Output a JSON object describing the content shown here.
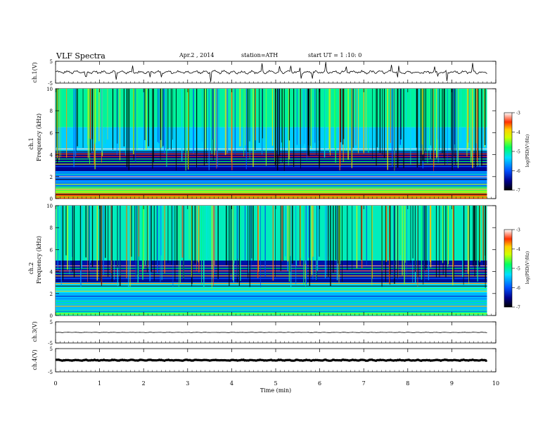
{
  "header": {
    "title": "VLF  Spectra",
    "date": "Apr.2 , 2014",
    "station": "station=ATH",
    "start": "start  UT  =  1 :10: 0"
  },
  "chart_data": [
    {
      "type": "line",
      "panel": "ch1-waveform",
      "ylabel": "ch.1(V)",
      "ylim": [
        -5,
        5
      ],
      "yticks": [
        "5",
        "-5"
      ],
      "xlim": [
        0,
        10
      ],
      "baseline_V": 0.0,
      "series": [
        {
          "x_min": [
            0,
            9.8
          ],
          "y_V_approx": 0.0
        }
      ]
    },
    {
      "type": "heatmap",
      "panel": "ch1-spectrogram",
      "ylabel": "ch.1\nFrequency  (kHz)",
      "ylim": [
        0,
        10
      ],
      "yticks": [
        "0",
        "2",
        "4",
        "6",
        "8",
        "10"
      ],
      "xlim": [
        0,
        10
      ],
      "data_x_extent_min": [
        0,
        9.8
      ],
      "colorbar": {
        "label": "log(PSD(V²/Hz)",
        "range": [
          -7,
          -3
        ],
        "ticks": [
          "-7",
          "-6",
          "-5",
          "-4",
          "-3"
        ]
      },
      "bands_khz": [
        {
          "from": 0,
          "to": 0.5,
          "logPSD": -3.6
        },
        {
          "from": 0.5,
          "to": 1.0,
          "logPSD": -4.6
        },
        {
          "from": 1.0,
          "to": 2.5,
          "logPSD": -5.8
        },
        {
          "from": 2.5,
          "to": 4.2,
          "logPSD": -6.5
        },
        {
          "from": 4.2,
          "to": 6.5,
          "logPSD": -5.4
        },
        {
          "from": 6.5,
          "to": 10,
          "logPSD": -5.0
        }
      ]
    },
    {
      "type": "heatmap",
      "panel": "ch2-spectrogram",
      "ylabel": "ch.2\nFrequency  (kHz)",
      "ylim": [
        0,
        10
      ],
      "yticks": [
        "0",
        "2",
        "4",
        "6",
        "8",
        "10"
      ],
      "xlim": [
        0,
        10
      ],
      "data_x_extent_min": [
        0,
        9.8
      ],
      "colorbar": {
        "label": "log(PSD(V²/Hz)",
        "range": [
          -7,
          -3
        ],
        "ticks": [
          "-7",
          "-6",
          "-5",
          "-4",
          "-3"
        ]
      },
      "bands_khz": [
        {
          "from": 0,
          "to": 0.5,
          "logPSD": -5.0
        },
        {
          "from": 0.5,
          "to": 2.0,
          "logPSD": -5.5
        },
        {
          "from": 2.0,
          "to": 3.0,
          "logPSD": -5.3
        },
        {
          "from": 3.0,
          "to": 5.0,
          "logPSD": -6.4
        },
        {
          "from": 5.0,
          "to": 10,
          "logPSD": -5.1
        }
      ]
    },
    {
      "type": "line",
      "panel": "ch3-waveform",
      "ylabel": "ch.3(V)",
      "ylim": [
        -5,
        5
      ],
      "yticks": [
        "5",
        "-5"
      ],
      "xlim": [
        0,
        10
      ],
      "baseline_V": 0.0
    },
    {
      "type": "line",
      "panel": "ch4-waveform",
      "ylabel": "ch.4(V)",
      "ylim": [
        -5,
        5
      ],
      "yticks": [
        "5",
        "-5"
      ],
      "xlim": [
        0,
        10
      ],
      "baseline_V": 0.0,
      "xlabel": "Time  (min)",
      "xticks": [
        "0",
        "1",
        "2",
        "3",
        "4",
        "5",
        "6",
        "7",
        "8",
        "9",
        "10"
      ]
    }
  ]
}
